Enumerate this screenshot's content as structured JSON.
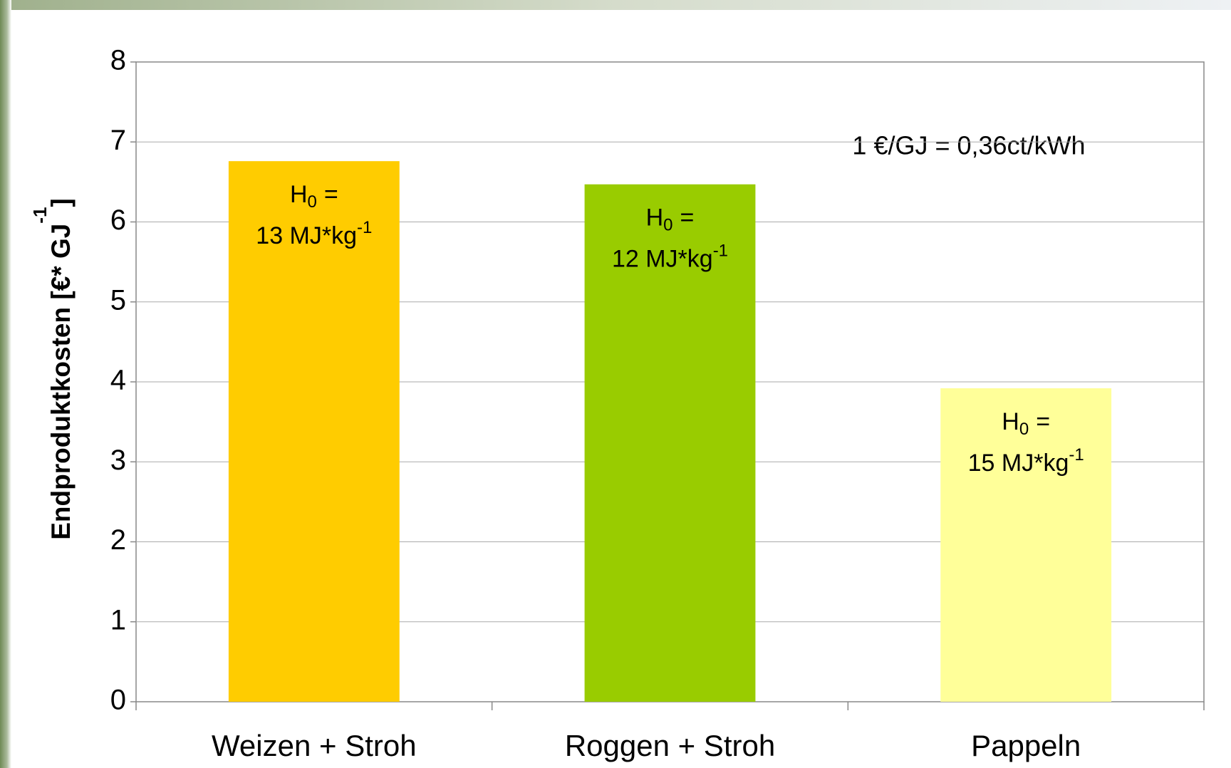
{
  "chart_data": {
    "type": "bar",
    "categories": [
      "Weizen + Stroh",
      "Roggen + Stroh",
      "Pappeln"
    ],
    "values": [
      6.76,
      6.47,
      3.92
    ],
    "colors": [
      "#ffcc00",
      "#99cc00",
      "#ffff99"
    ],
    "ylim": [
      0,
      8
    ],
    "yticks": [
      0,
      1,
      2,
      3,
      4,
      5,
      6,
      7,
      8
    ],
    "grid": true,
    "ylabel": "Endproduktkosten [€* GJ",
    "ylabel_exponent": "-1",
    "ylabel_close": "]",
    "annotation": "1 €/GJ = 0,36ct/kWh",
    "bar_labels": [
      {
        "symbol": "H",
        "subscript": "0",
        "relation": "=",
        "energy": "13 MJ*kg",
        "exponent": "-1"
      },
      {
        "symbol": "H",
        "subscript": "0",
        "relation": "=",
        "energy": "12 MJ*kg",
        "exponent": "-1"
      },
      {
        "symbol": "H",
        "subscript": "0",
        "relation": "=",
        "energy": "15 MJ*kg",
        "exponent": "-1"
      }
    ]
  }
}
